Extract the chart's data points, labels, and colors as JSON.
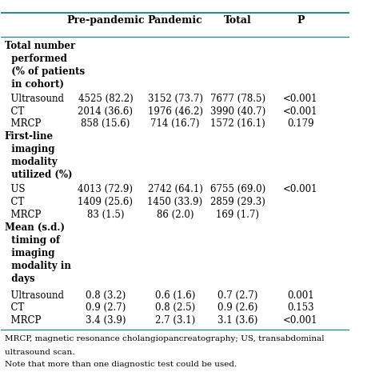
{
  "header": [
    "",
    "Pre-pandemic",
    "Pandemic",
    "Total",
    "P"
  ],
  "rows": [
    {
      "text": "Total number\n  performed\n  (% of patients\n  in cohort)",
      "bold": true,
      "indent": false,
      "type": "header"
    },
    {
      "text": "  Ultrasound",
      "bold": false,
      "indent": true,
      "type": "data",
      "values": [
        "4525 (82.2)",
        "3152 (73.7)",
        "7677 (78.5)",
        "<0.001"
      ]
    },
    {
      "text": "  CT",
      "bold": false,
      "indent": true,
      "type": "data",
      "values": [
        "2014 (36.6)",
        "1976 (46.2)",
        "3990 (40.7)",
        "<0.001"
      ]
    },
    {
      "text": "  MRCP",
      "bold": false,
      "indent": true,
      "type": "data",
      "values": [
        "858 (15.6)",
        "714 (16.7)",
        "1572 (16.1)",
        "0.179"
      ]
    },
    {
      "text": "First-line\n  imaging\n  modality\n  utilized (%)",
      "bold": true,
      "indent": false,
      "type": "header"
    },
    {
      "text": "  US",
      "bold": false,
      "indent": true,
      "type": "data",
      "values": [
        "4013 (72.9)",
        "2742 (64.1)",
        "6755 (69.0)",
        "<0.001"
      ]
    },
    {
      "text": "  CT",
      "bold": false,
      "indent": true,
      "type": "data",
      "values": [
        "1409 (25.6)",
        "1450 (33.9)",
        "2859 (29.3)",
        ""
      ]
    },
    {
      "text": "  MRCP",
      "bold": false,
      "indent": true,
      "type": "data",
      "values": [
        "83 (1.5)",
        "86 (2.0)",
        "169 (1.7)",
        ""
      ]
    },
    {
      "text": "Mean (s.d.)\n  timing of\n  imaging\n  modality in\n  days",
      "bold": true,
      "indent": false,
      "type": "header"
    },
    {
      "text": "  Ultrasound",
      "bold": false,
      "indent": true,
      "type": "data",
      "values": [
        "0.8 (3.2)",
        "0.6 (1.6)",
        "0.7 (2.7)",
        "0.001"
      ]
    },
    {
      "text": "  CT",
      "bold": false,
      "indent": true,
      "type": "data",
      "values": [
        "0.9 (2.7)",
        "0.8 (2.5)",
        "0.9 (2.6)",
        "0.153"
      ]
    },
    {
      "text": "  MRCP",
      "bold": false,
      "indent": true,
      "type": "data",
      "values": [
        "3.4 (3.9)",
        "2.7 (3.1)",
        "3.1 (3.6)",
        "<0.001"
      ]
    }
  ],
  "footnote1": "MRCP, magnetic resonance cholangiopancreatography; US, transabdominal",
  "footnote2": "ultrasound scan.",
  "footnote3": "Note that more than one diagnostic test could be used.",
  "header_line_color": "#2e8b8b",
  "bg_color": "#ffffff",
  "text_color": "#000000",
  "font_size": 8.5,
  "header_font_size": 9.0
}
